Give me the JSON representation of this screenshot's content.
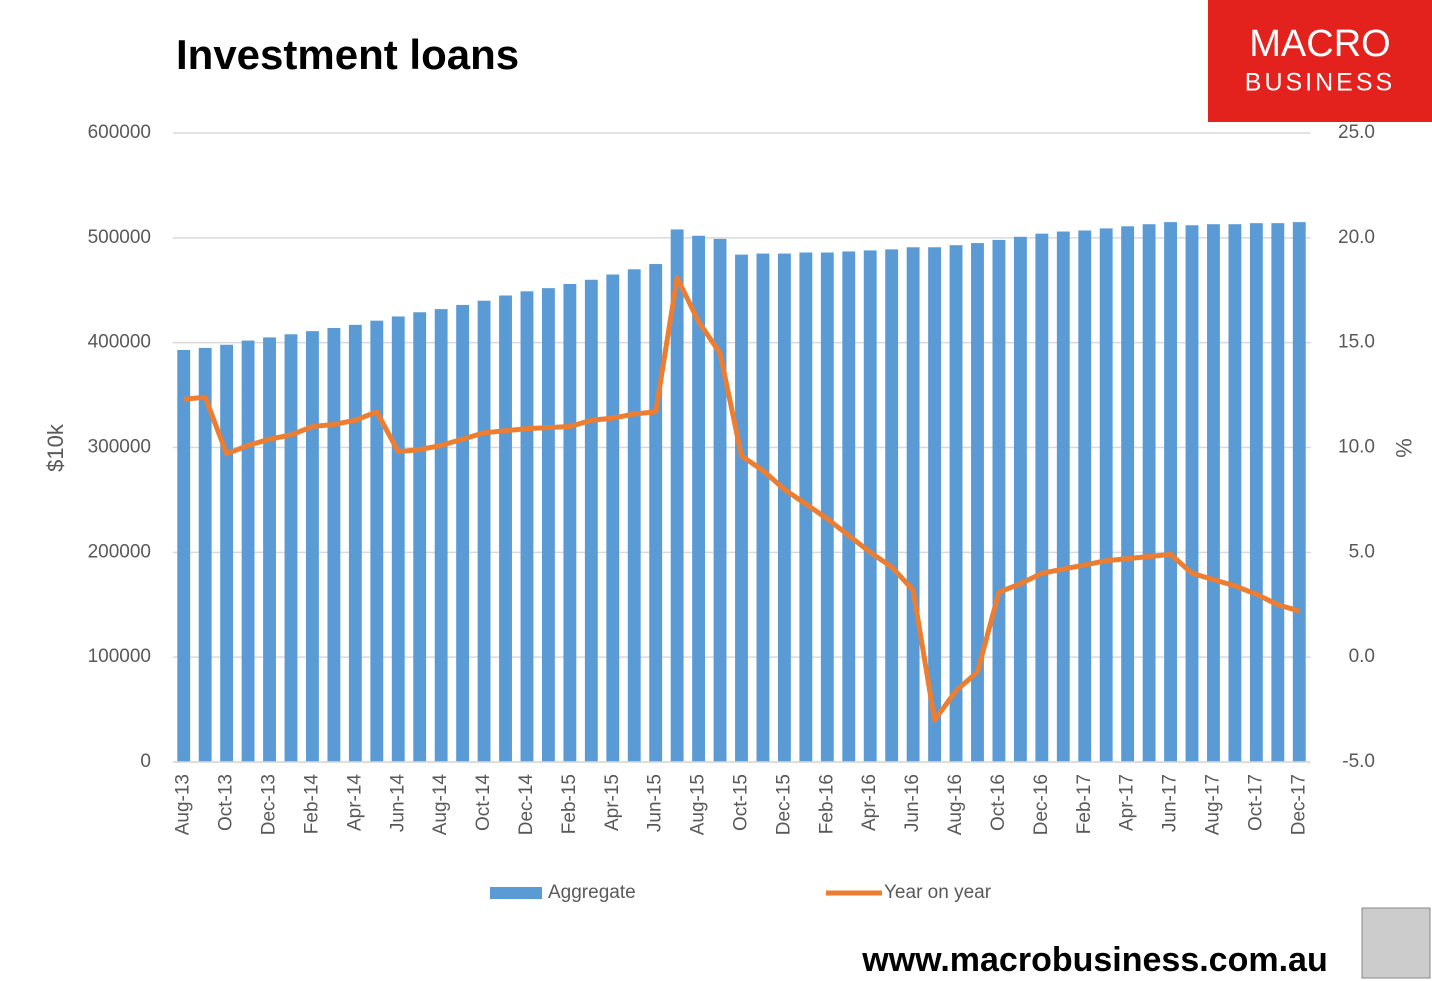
{
  "chart_data": {
    "type": "bar_line",
    "title": "Investment loans",
    "ylabel": "$10k",
    "y2label": "%",
    "categories": [
      "Aug-13",
      null,
      "Oct-13",
      null,
      "Dec-13",
      null,
      "Feb-14",
      null,
      "Apr-14",
      null,
      "Jun-14",
      null,
      "Aug-14",
      null,
      "Oct-14",
      null,
      "Dec-14",
      null,
      "Feb-15",
      null,
      "Apr-15",
      null,
      "Jun-15",
      null,
      "Aug-15",
      null,
      "Oct-15",
      null,
      "Dec-15",
      null,
      "Feb-16",
      null,
      "Apr-16",
      null,
      "Jun-16",
      null,
      "Aug-16",
      null,
      "Oct-16",
      null,
      "Dec-16",
      null,
      "Feb-17",
      null,
      "Apr-17",
      null,
      "Jun-17",
      null,
      "Aug-17",
      null,
      "Oct-17",
      null,
      "Dec-17"
    ],
    "series": [
      {
        "name": "Aggregate",
        "type": "bar",
        "axis": "y",
        "color": "#5b9bd5",
        "values": [
          393000,
          395000,
          398000,
          402000,
          405000,
          408000,
          411000,
          414000,
          417000,
          421000,
          425000,
          429000,
          432000,
          436000,
          440000,
          445000,
          449000,
          452000,
          456000,
          460000,
          465000,
          470000,
          475000,
          508000,
          502000,
          499000,
          484000,
          485000,
          485000,
          486000,
          486000,
          487000,
          488000,
          489000,
          491000,
          491000,
          493000,
          495000,
          498000,
          501000,
          504000,
          506000,
          507000,
          509000,
          511000,
          513000,
          515000,
          512000,
          513000,
          513000,
          514000,
          514000,
          515000
        ]
      },
      {
        "name": "Year on year",
        "type": "line",
        "axis": "y2",
        "color": "#ed7d31",
        "values": [
          12.3,
          12.4,
          9.7,
          10.1,
          10.4,
          10.6,
          11.0,
          11.1,
          11.3,
          11.7,
          9.8,
          9.9,
          10.1,
          10.4,
          10.7,
          10.8,
          10.9,
          10.95,
          11.0,
          11.3,
          11.4,
          11.6,
          11.7,
          18.1,
          16.0,
          14.5,
          9.6,
          8.9,
          8.0,
          7.3,
          6.6,
          5.8,
          5.0,
          4.3,
          3.2,
          -3.0,
          -1.6,
          -0.7,
          3.1,
          3.5,
          4.0,
          4.2,
          4.4,
          4.6,
          4.7,
          4.8,
          4.9,
          4.0,
          3.7,
          3.4,
          3.0,
          2.5,
          2.2
        ]
      }
    ],
    "ylim": [
      0,
      600000
    ],
    "yticks": [
      0,
      100000,
      200000,
      300000,
      400000,
      500000,
      600000
    ],
    "y2lim": [
      -5,
      25
    ],
    "y2ticks": [
      {
        "value": -5,
        "label": "-5.0"
      },
      {
        "value": 0,
        "label": "0.0"
      },
      {
        "value": 5,
        "label": "5.0"
      },
      {
        "value": 10,
        "label": "10.0"
      },
      {
        "value": 15,
        "label": "15.0"
      },
      {
        "value": 20,
        "label": "20.0"
      },
      {
        "value": 25,
        "label": "25.0"
      }
    ],
    "grid": true,
    "legend": "bottom"
  },
  "branding": {
    "logo_top": "MACRO",
    "logo_bottom": "BUSINESS",
    "url": "www.macrobusiness.com.au"
  }
}
